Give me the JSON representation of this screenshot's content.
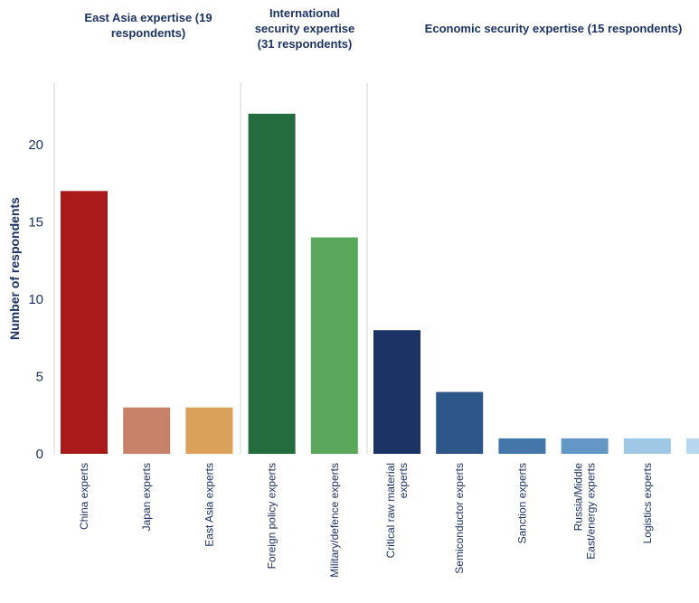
{
  "chart_data": {
    "type": "bar",
    "ylabel": "Number of respondents",
    "yticks": [
      0,
      5,
      10,
      15,
      20
    ],
    "ylim": [
      0,
      23
    ],
    "groups": [
      {
        "title_lines": [
          "East Asia expertise (19",
          "respondents)"
        ],
        "start": 0,
        "end": 2
      },
      {
        "title_lines": [
          "International",
          "security expertise",
          "(31 respondents)"
        ],
        "start": 3,
        "end": 4
      },
      {
        "title_lines": [
          "Economic security expertise (15 respondents)"
        ],
        "start": 5,
        "end": 10
      }
    ],
    "categories": [
      {
        "label_lines": [
          "China experts"
        ],
        "value": 17,
        "color": "#a91b1b"
      },
      {
        "label_lines": [
          "Japan experts"
        ],
        "value": 3,
        "color": "#c8826a"
      },
      {
        "label_lines": [
          "East Asia experts"
        ],
        "value": 3,
        "color": "#d9a159"
      },
      {
        "label_lines": [
          "Foreign policy experts"
        ],
        "value": 22,
        "color": "#246b3d"
      },
      {
        "label_lines": [
          "Military/defence experts"
        ],
        "value": 14,
        "color": "#5aa65a"
      },
      {
        "label_lines": [
          "Critical raw material",
          "experts"
        ],
        "value": 8,
        "color": "#1c3365"
      },
      {
        "label_lines": [
          "Semiconductor experts"
        ],
        "value": 4,
        "color": "#2d5689"
      },
      {
        "label_lines": [
          "Sanction experts"
        ],
        "value": 1,
        "color": "#4576aa"
      },
      {
        "label_lines": [
          "Russia/Middle",
          "East/energy experts"
        ],
        "value": 1,
        "color": "#6397c6"
      },
      {
        "label_lines": [
          "Logistics experts"
        ],
        "value": 1,
        "color": "#9ec8e6"
      },
      {
        "label_lines": [
          ""
        ],
        "value": 1,
        "color": "#b6d7ee"
      }
    ]
  }
}
